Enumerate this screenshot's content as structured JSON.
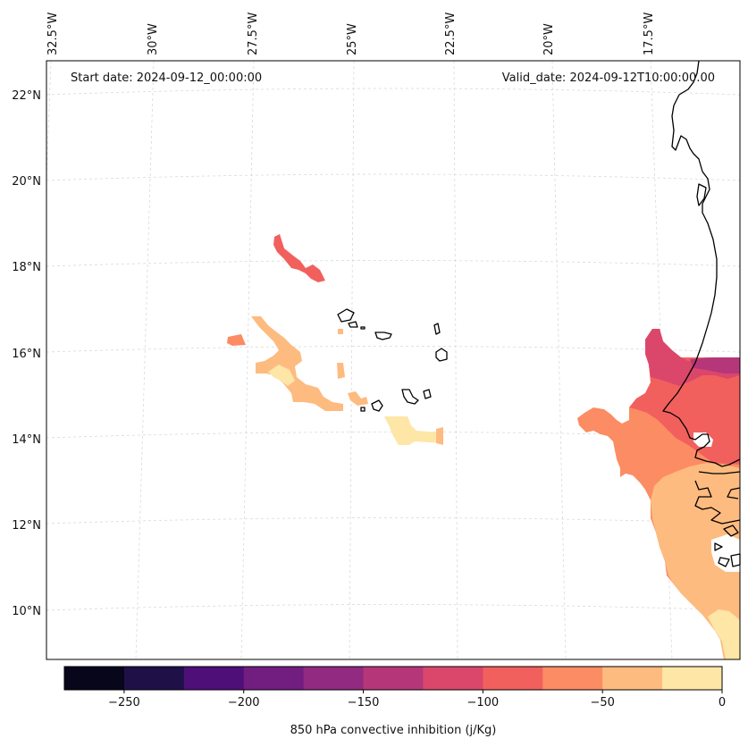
{
  "header": {
    "start_date": "Start date: 2024-09-12_00:00:00",
    "valid_date": "Valid_date: 2024-09-12T10:00:00.00"
  },
  "map": {
    "top_longitude_labels": [
      "32.5°W",
      "30°W",
      "27.5°W",
      "25°W",
      "22.5°W",
      "20°W",
      "17.5°W"
    ],
    "left_latitude_labels": [
      "22°N",
      "20°N",
      "18°N",
      "16°N",
      "14°N",
      "12°N",
      "10°N"
    ],
    "gridlines": true,
    "coastlines": true
  },
  "colorbar": {
    "label": "850 hPa convective inhibition (j/Kg)",
    "tick_labels": [
      "−250",
      "−200",
      "−150",
      "−100",
      "−50",
      "0"
    ],
    "levels": [
      -275,
      -250,
      -225,
      -200,
      -175,
      -150,
      -125,
      -100,
      -75,
      -50,
      -25,
      0
    ],
    "colors": [
      "#07061a",
      "#1f1147",
      "#4e0f78",
      "#721e81",
      "#912a80",
      "#b5377a",
      "#db476b",
      "#f1605d",
      "#fc8c63",
      "#febb80",
      "#fde6a6"
    ]
  }
}
